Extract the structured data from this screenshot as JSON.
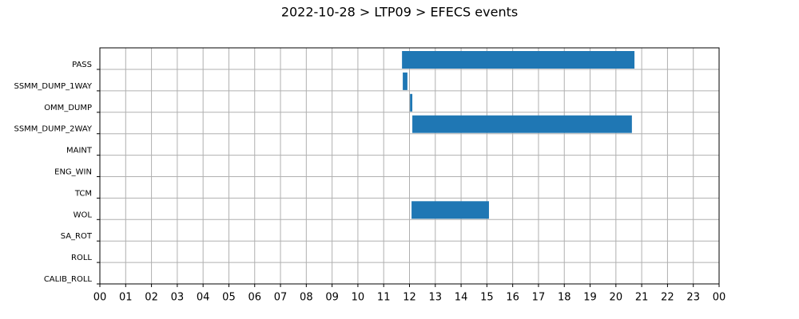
{
  "chart_data": {
    "type": "gantt",
    "title": "2022-10-28 > LTP09 > EFECS events",
    "categories": [
      "PASS",
      "SSMM_DUMP_1WAY",
      "OMM_DUMP",
      "SSMM_DUMP_2WAY",
      "MAINT",
      "ENG_WIN",
      "TCM",
      "WOL",
      "SA_ROT",
      "ROLL",
      "CALIB_ROLL"
    ],
    "start": [
      11.71,
      11.74,
      12.02,
      12.11,
      null,
      null,
      null,
      12.08,
      null,
      null,
      null
    ],
    "end": [
      20.72,
      11.92,
      12.11,
      20.62,
      null,
      null,
      null,
      15.08,
      null,
      null,
      null
    ],
    "color": "#1f77b4",
    "xlim": [
      0,
      24
    ],
    "xticks": [
      {
        "value": 0,
        "label": "00"
      },
      {
        "value": 1,
        "label": "01"
      },
      {
        "value": 2,
        "label": "02"
      },
      {
        "value": 3,
        "label": "03"
      },
      {
        "value": 4,
        "label": "04"
      },
      {
        "value": 5,
        "label": "05"
      },
      {
        "value": 6,
        "label": "06"
      },
      {
        "value": 7,
        "label": "07"
      },
      {
        "value": 8,
        "label": "08"
      },
      {
        "value": 9,
        "label": "09"
      },
      10,
      11,
      12,
      13,
      14,
      15,
      16,
      17,
      18,
      19,
      20,
      21,
      22,
      23,
      {
        "value": 24,
        "label": "00"
      }
    ],
    "grid": true
  }
}
